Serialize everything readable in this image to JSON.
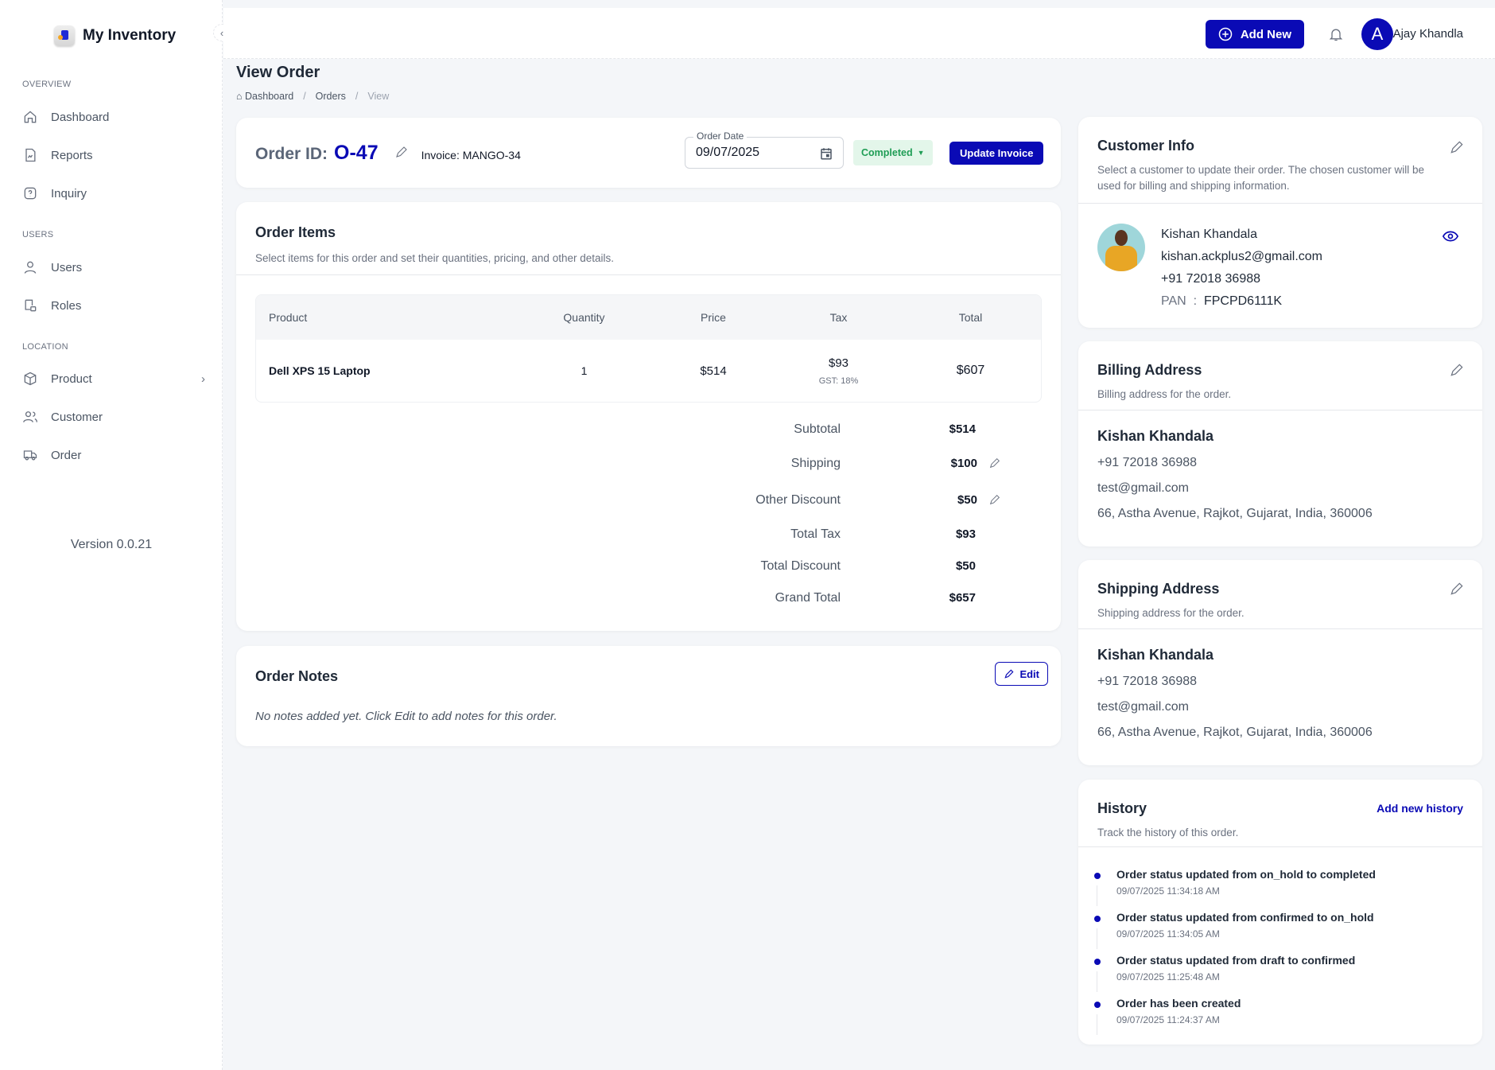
{
  "app": {
    "name": "My Inventory",
    "version": "Version 0.0.21"
  },
  "sidebar": {
    "sections": [
      {
        "label": "OVERVIEW",
        "items": [
          {
            "label": "Dashboard",
            "icon": "home-icon"
          },
          {
            "label": "Reports",
            "icon": "report-icon"
          },
          {
            "label": "Inquiry",
            "icon": "help-icon"
          }
        ]
      },
      {
        "label": "USERS",
        "items": [
          {
            "label": "Users",
            "icon": "user-icon"
          },
          {
            "label": "Roles",
            "icon": "roles-icon"
          }
        ]
      },
      {
        "label": "LOCATION",
        "items": [
          {
            "label": "Product",
            "icon": "box-icon"
          },
          {
            "label": "Customer",
            "icon": "customers-icon"
          },
          {
            "label": "Order",
            "icon": "truck-icon"
          }
        ]
      }
    ]
  },
  "header": {
    "add_new": "Add New",
    "user_initial": "A",
    "user_name": "Ajay Khandla"
  },
  "page": {
    "title": "View Order",
    "breadcrumb": [
      "Dashboard",
      "Orders",
      "View"
    ]
  },
  "order": {
    "id_label": "Order ID:",
    "id": "O-47",
    "invoice": "Invoice: MANGO-34",
    "date_label": "Order Date",
    "date": "09/07/2025",
    "status": "Completed",
    "update_button": "Update Invoice"
  },
  "items": {
    "title": "Order Items",
    "subtitle": "Select items for this order and set their quantities, pricing, and other details.",
    "columns": [
      "Product",
      "Quantity",
      "Price",
      "Tax",
      "Total"
    ],
    "rows": [
      {
        "product": "Dell XPS 15 Laptop",
        "quantity": "1",
        "price": "$514",
        "tax": "$93",
        "tax_note": "GST: 18%",
        "total": "$607"
      }
    ],
    "summary": [
      {
        "label": "Subtotal",
        "value": "$514"
      },
      {
        "label": "Shipping",
        "value": "$100",
        "editable": true
      },
      {
        "label": "Other Discount",
        "value": "$50",
        "editable": true
      },
      {
        "label": "Total Tax",
        "value": "$93"
      },
      {
        "label": "Total Discount",
        "value": "$50"
      },
      {
        "label": "Grand Total",
        "value": "$657"
      }
    ]
  },
  "notes": {
    "title": "Order Notes",
    "edit": "Edit",
    "empty": "No notes added yet. Click Edit to add notes for this order."
  },
  "customer": {
    "title": "Customer Info",
    "subtitle": "Select a customer to update their order. The chosen customer will be used for billing and shipping information.",
    "name": "Kishan Khandala",
    "email": "kishan.ackplus2@gmail.com",
    "phone": "+91 72018 36988",
    "pan_label": "PAN",
    "pan": "FPCPD6111K"
  },
  "billing": {
    "title": "Billing Address",
    "subtitle": "Billing address for the order.",
    "name": "Kishan Khandala",
    "phone": "+91 72018 36988",
    "email": "test@gmail.com",
    "address": "66, Astha Avenue, Rajkot, Gujarat, India, 360006"
  },
  "shipping": {
    "title": "Shipping Address",
    "subtitle": "Shipping address for the order.",
    "name": "Kishan Khandala",
    "phone": "+91 72018 36988",
    "email": "test@gmail.com",
    "address": "66, Astha Avenue, Rajkot, Gujarat, India, 360006"
  },
  "history": {
    "title": "History",
    "subtitle": "Track the history of this order.",
    "add": "Add new history",
    "entries": [
      {
        "text": "Order status updated from on_hold to completed",
        "time": "09/07/2025 11:34:18 AM"
      },
      {
        "text": "Order status updated from confirmed to on_hold",
        "time": "09/07/2025 11:34:05 AM"
      },
      {
        "text": "Order status updated from draft to confirmed",
        "time": "09/07/2025 11:25:48 AM"
      },
      {
        "text": "Order has been created",
        "time": "09/07/2025 11:24:37 AM"
      }
    ]
  },
  "colors": {
    "accent": "#0a0ab5",
    "status_bg": "#e3f6ea",
    "status_text": "#1f9d55"
  }
}
